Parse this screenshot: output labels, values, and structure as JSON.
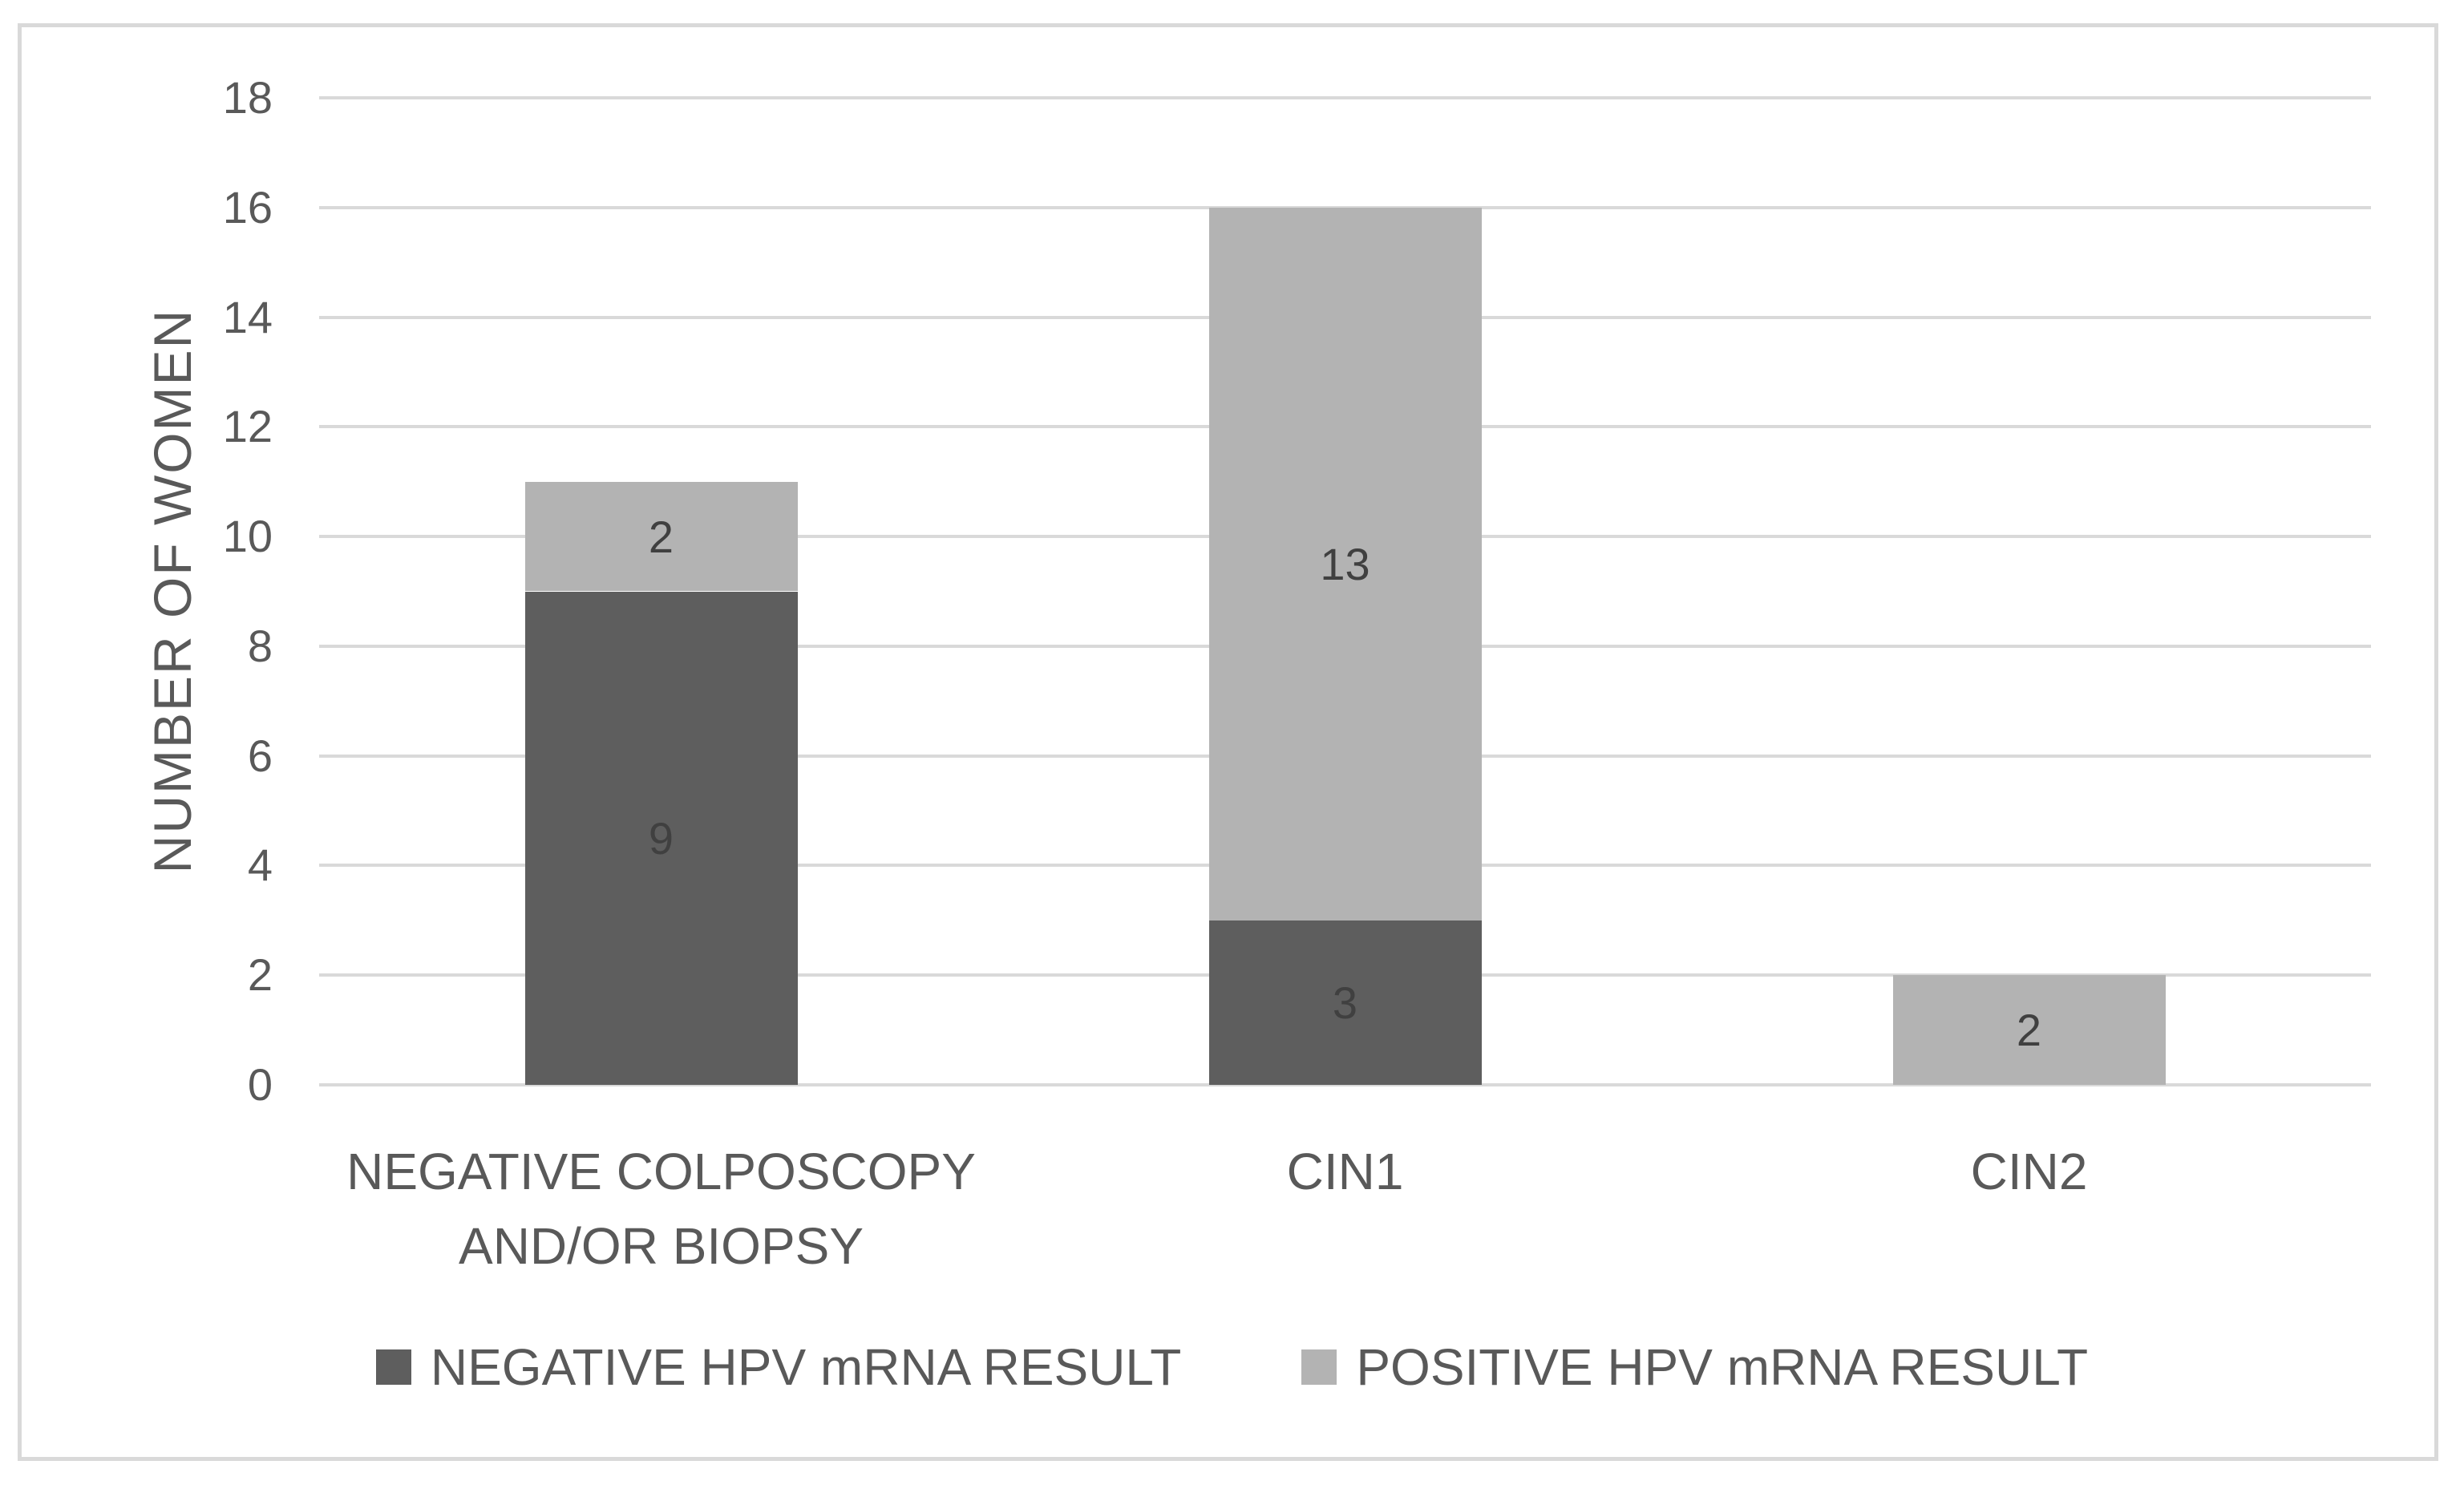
{
  "chart_data": {
    "type": "bar",
    "stacked": true,
    "title": "",
    "categories": [
      "NEGATIVE COLPOSCOPY\nAND/OR BIOPSY",
      "CIN1",
      "CIN2"
    ],
    "series": [
      {
        "name": "NEGATIVE HPV mRNA RESULT",
        "color": "#5e5e5e",
        "values": [
          9,
          3,
          0
        ]
      },
      {
        "name": "POSITIVE HPV mRNA RESULT",
        "color": "#b3b3b3",
        "values": [
          2,
          13,
          2
        ]
      }
    ],
    "data_labels": [
      {
        "series": "NEGATIVE HPV mRNA RESULT",
        "values": [
          "9",
          "3",
          ""
        ]
      },
      {
        "series": "POSITIVE HPV mRNA RESULT",
        "values": [
          "2",
          "13",
          "2"
        ]
      }
    ],
    "xlabel": "",
    "ylabel": "NUMBER OF WOMEN",
    "ylim": [
      0,
      18
    ],
    "yticks": [
      0,
      2,
      4,
      6,
      8,
      10,
      12,
      14,
      16,
      18
    ],
    "grid": true,
    "legend_position": "bottom"
  },
  "colors": {
    "grid": "#d9d9d9",
    "frame_border": "#d9d9d9",
    "axis_text": "#595959",
    "data_label_text": "#404040",
    "background": "#ffffff",
    "series_negative": "#5e5e5e",
    "series_positive": "#b3b3b3"
  }
}
